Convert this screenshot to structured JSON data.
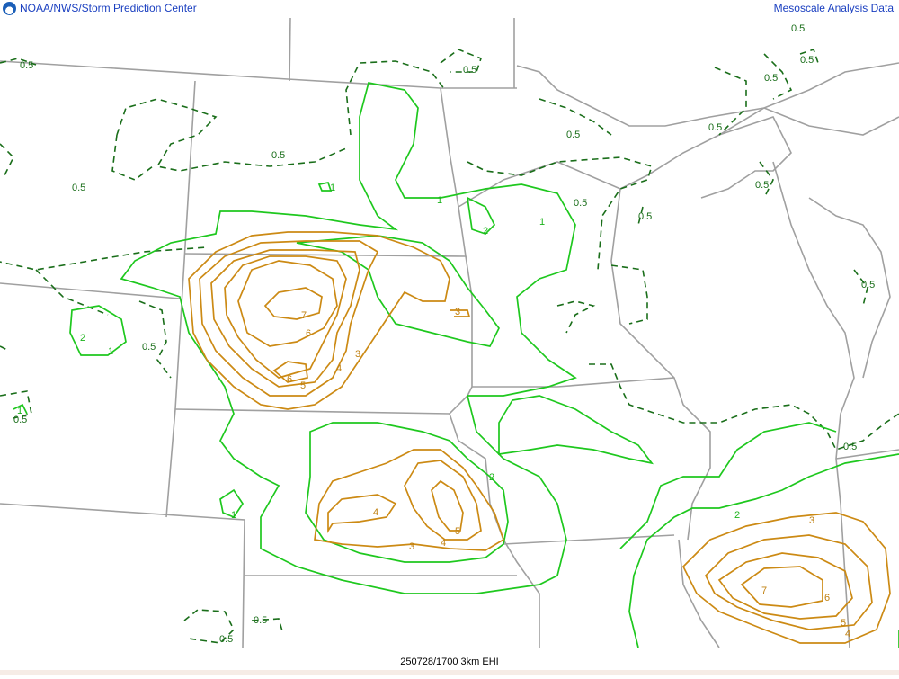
{
  "header": {
    "left_title": "NOAA/NWS/Storm Prediction Center",
    "right_title": "Mesoscale Analysis Data"
  },
  "footer": {
    "caption": "250728/1700 3km EHI"
  },
  "colors": {
    "border": "#a0a0a0",
    "contour_low_dashed": "#1a6e1a",
    "contour_green": "#1ec81e",
    "contour_orange": "#cc8a14",
    "header_text": "#1a3fc0"
  },
  "logo": {
    "icon": "noaa-logo"
  },
  "contour_labels": {
    "dashed": [
      "0.5",
      "0.5",
      "0.5",
      "0.5",
      "0.5",
      "0.5",
      "0.5",
      "0.5",
      "0.5",
      "0.5",
      "0.5",
      "0.5",
      "0.5",
      "0.5",
      "0.5",
      "0.5",
      "0.5",
      "0.5"
    ],
    "green": [
      "1",
      "1",
      "1",
      "2",
      "1",
      "2",
      "1",
      "1",
      "2",
      "2"
    ],
    "orange": [
      "7",
      "6",
      "6",
      "5",
      "4",
      "3",
      "3",
      "4",
      "5",
      "4",
      "3",
      "3",
      "7",
      "6",
      "5",
      "4"
    ]
  }
}
